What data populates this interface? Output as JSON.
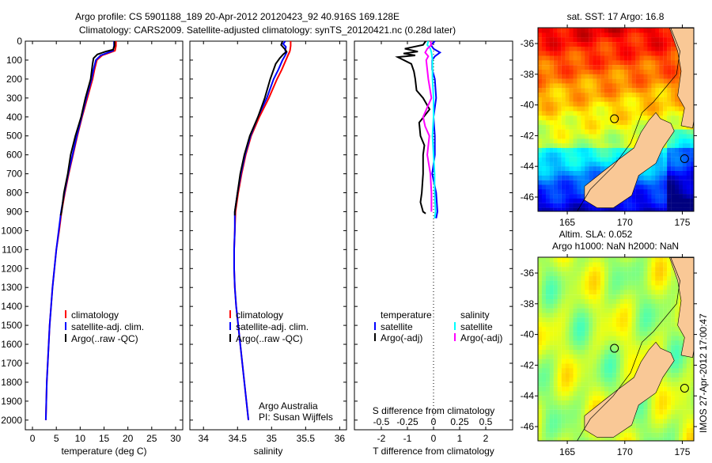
{
  "title": {
    "line1": "Argo profile: CS 5901188_189 20-Apr-2012 20120423_92 40.916S 169.128E",
    "line2": "Climatology: CARS2009. Satellite-adjusted climatology: synTS_20120421.nc (0.28d later)"
  },
  "depth_ticks": [
    "0",
    "100",
    "200",
    "300",
    "400",
    "500",
    "600",
    "700",
    "800",
    "900",
    "1000",
    "1100",
    "1200",
    "1300",
    "1400",
    "1500",
    "1600",
    "1700",
    "1800",
    "1900",
    "2000"
  ],
  "chart_data": [
    {
      "type": "line",
      "name": "temperature",
      "xlabel": "temperature (deg C)",
      "ylabel": "depth",
      "xlim": [
        -1.5,
        31.5
      ],
      "ylim": [
        0,
        2050
      ],
      "xticks": [
        "0",
        "5",
        "10",
        "15",
        "20",
        "25",
        "30"
      ],
      "legend": [
        "climatology",
        "satellite-adj. clim.",
        "Argo(..raw -QC)"
      ],
      "series": [
        {
          "name": "climatology",
          "color": "#ff0000",
          "depth": [
            0,
            25,
            50,
            60,
            75,
            100,
            150,
            200,
            300,
            400,
            500,
            600,
            700,
            800,
            900,
            1000,
            1100,
            1200,
            1300,
            1400,
            1500,
            1600,
            1700,
            1800,
            1900,
            2000
          ],
          "values": [
            17.5,
            17.5,
            17.3,
            16.3,
            14.6,
            13.5,
            13.0,
            12.6,
            11.5,
            10.4,
            9.4,
            8.5,
            7.6,
            6.8,
            6.1,
            5.6,
            5.0,
            4.6,
            4.2,
            3.9,
            3.6,
            3.4,
            3.2,
            3.0,
            2.9,
            2.8
          ]
        },
        {
          "name": "satellite-adj. clim.",
          "color": "#0000ff",
          "depth": [
            0,
            25,
            50,
            60,
            75,
            100,
            150,
            200,
            300,
            400,
            500,
            600,
            700,
            800,
            900,
            1000,
            1100,
            1200,
            1300,
            1400,
            1500,
            1600,
            1700,
            1800,
            1900,
            2000
          ],
          "values": [
            17.1,
            17.1,
            16.9,
            15.9,
            14.3,
            13.3,
            12.8,
            12.4,
            11.3,
            10.3,
            9.3,
            8.4,
            7.5,
            6.7,
            6.0,
            5.5,
            5.0,
            4.6,
            4.2,
            3.9,
            3.6,
            3.4,
            3.2,
            3.0,
            2.9,
            2.8
          ]
        },
        {
          "name": "Argo(..raw -QC)",
          "color": "#000000",
          "depth": [
            0,
            25,
            45,
            55,
            70,
            90,
            120,
            200,
            300,
            400,
            500,
            600,
            700,
            800,
            900,
            920
          ],
          "values": [
            17.2,
            17.2,
            16.9,
            15.3,
            13.6,
            12.8,
            12.6,
            12.2,
            11.1,
            10.2,
            9.0,
            8.0,
            7.4,
            6.6,
            6.1,
            5.9
          ]
        }
      ]
    },
    {
      "type": "line",
      "name": "salinity",
      "xlabel": "salinity",
      "xlim": [
        33.8,
        36.1
      ],
      "ylim": [
        0,
        2050
      ],
      "xticks": [
        "34",
        "34.5",
        "35",
        "35.5",
        "36"
      ],
      "legend": [
        "climatology",
        "satellite-adj. clim.",
        "Argo(..raw -QC)"
      ],
      "annotation": [
        "Argo Australia",
        "PI: Susan Wijffels"
      ],
      "series": [
        {
          "name": "climatology",
          "color": "#ff0000",
          "depth": [
            0,
            25,
            50,
            60,
            75,
            100,
            150,
            200,
            300,
            400,
            500,
            600,
            700,
            800,
            900,
            1000,
            1100,
            1200,
            1300,
            1400,
            1500,
            1600,
            1700,
            1800,
            1900,
            2000
          ],
          "values": [
            35.28,
            35.28,
            35.27,
            35.26,
            35.24,
            35.21,
            35.15,
            35.08,
            34.96,
            34.82,
            34.7,
            34.62,
            34.56,
            34.51,
            34.47,
            34.46,
            34.45,
            34.45,
            34.46,
            34.48,
            34.51,
            34.54,
            34.57,
            34.6,
            34.63,
            34.66
          ]
        },
        {
          "name": "satellite-adj. clim.",
          "color": "#0000ff",
          "depth": [
            0,
            15,
            30,
            50,
            60,
            75,
            100,
            150,
            200,
            300,
            400,
            500,
            600,
            700,
            800,
            900,
            1000,
            1100,
            1200,
            1300,
            1400,
            1500,
            1600,
            1700,
            1800,
            1900,
            2000
          ],
          "values": [
            35.2,
            35.17,
            35.21,
            35.2,
            35.22,
            35.2,
            35.16,
            35.1,
            35.03,
            34.93,
            34.8,
            34.69,
            34.61,
            34.55,
            34.5,
            34.46,
            34.46,
            34.45,
            34.45,
            34.46,
            34.48,
            34.51,
            34.54,
            34.57,
            34.6,
            34.63,
            34.66
          ]
        },
        {
          "name": "Argo(..raw -QC)",
          "color": "#000000",
          "depth": [
            0,
            20,
            40,
            55,
            70,
            90,
            120,
            200,
            300,
            400,
            500,
            600,
            700,
            800,
            900,
            920
          ],
          "values": [
            35.16,
            35.14,
            35.19,
            35.22,
            35.17,
            35.12,
            35.06,
            34.98,
            34.9,
            34.8,
            34.68,
            34.6,
            34.54,
            34.5,
            34.46,
            34.46
          ]
        }
      ]
    },
    {
      "type": "line",
      "name": "difference-from-climatology",
      "xlabel": "T difference from climatology",
      "xlabel_top": "S difference from climatology",
      "xlim": [
        -3.03,
        3.03
      ],
      "xlim_s": [
        -0.7575,
        0.7575
      ],
      "ylim": [
        0,
        2050
      ],
      "xticks": [
        "-2",
        "-1",
        "0",
        "1",
        "2"
      ],
      "xticks_s": [
        "-0.5",
        "-0.25",
        "0",
        "0.25",
        "0.5"
      ],
      "legend_headers": [
        "temperature",
        "salinity"
      ],
      "legend": [
        "satellite",
        "Argo(-adj)",
        "satellite",
        "Argo(-adj)"
      ],
      "series": [
        {
          "name": "T satellite",
          "quantity": "T",
          "color": "#0000ff",
          "depth": [
            0,
            20,
            40,
            60,
            80,
            100,
            150,
            200,
            300,
            400,
            500,
            600,
            700,
            800,
            900,
            935
          ],
          "values": [
            0.05,
            -0.1,
            0.0,
            0.25,
            0.05,
            -0.05,
            -0.05,
            0.05,
            0.1,
            0.0,
            0.05,
            0.05,
            -0.05,
            0.1,
            0.15,
            0.1
          ]
        },
        {
          "name": "T Argo(-adj)",
          "quantity": "T",
          "color": "#000000",
          "depth": [
            0,
            20,
            40,
            55,
            65,
            75,
            84,
            120,
            160,
            200,
            260,
            300,
            360,
            430,
            500,
            550,
            600,
            700,
            800,
            850,
            900,
            910
          ],
          "values": [
            -0.3,
            -0.4,
            -1.1,
            -0.6,
            -1.15,
            -0.7,
            -1.37,
            -0.85,
            -0.75,
            -0.7,
            -0.65,
            -0.4,
            -0.15,
            -0.55,
            -0.5,
            -0.35,
            -0.4,
            -0.4,
            -0.45,
            -0.5,
            -0.4,
            -0.3
          ]
        },
        {
          "name": "S satellite",
          "quantity": "S",
          "color": "#00ffff",
          "depth": [
            0,
            20,
            40,
            60,
            100,
            200,
            300,
            400,
            500,
            600,
            700,
            800,
            900,
            935
          ],
          "values": [
            -0.05,
            -0.06,
            -0.03,
            -0.02,
            -0.01,
            -0.01,
            0.0,
            0.0,
            -0.01,
            0.0,
            0.01,
            0.01,
            0.02,
            0.01
          ]
        },
        {
          "name": "S Argo(-adj)",
          "quantity": "S",
          "color": "#ff00ff",
          "depth": [
            0,
            20,
            40,
            60,
            80,
            100,
            150,
            200,
            300,
            400,
            450,
            500,
            550,
            600,
            700,
            800,
            900
          ],
          "values": [
            -0.03,
            -0.02,
            -0.06,
            -0.08,
            -0.05,
            -0.07,
            -0.06,
            -0.05,
            -0.02,
            -0.1,
            -0.08,
            -0.04,
            -0.05,
            -0.06,
            -0.03,
            -0.02,
            -0.02
          ]
        }
      ]
    }
  ],
  "maps": [
    {
      "name": "sst-map",
      "title": [
        "sat. SST: 17 Argo: 16.8"
      ],
      "lon_ticks": [
        "165",
        "170",
        "175"
      ],
      "lat_ticks": [
        "-36",
        "-38",
        "-40",
        "-42",
        "-44",
        "-46"
      ],
      "markers": [
        {
          "lon": 169.1,
          "lat": -40.9
        },
        {
          "lon": 175.2,
          "lat": -43.5
        }
      ]
    },
    {
      "name": "sla-map",
      "title": [
        "Altim. SLA: 0.052",
        "Argo h1000: NaN h2000: NaN"
      ],
      "lon_ticks": [
        "165",
        "170",
        "175"
      ],
      "lat_ticks": [
        "-36",
        "-38",
        "-40",
        "-42",
        "-44",
        "-46"
      ],
      "markers": [
        {
          "lon": 169.1,
          "lat": -40.9
        },
        {
          "lon": 175.2,
          "lat": -43.5
        }
      ]
    }
  ],
  "timestamp": "IMOS 27-Apr-2012 17:00:47"
}
